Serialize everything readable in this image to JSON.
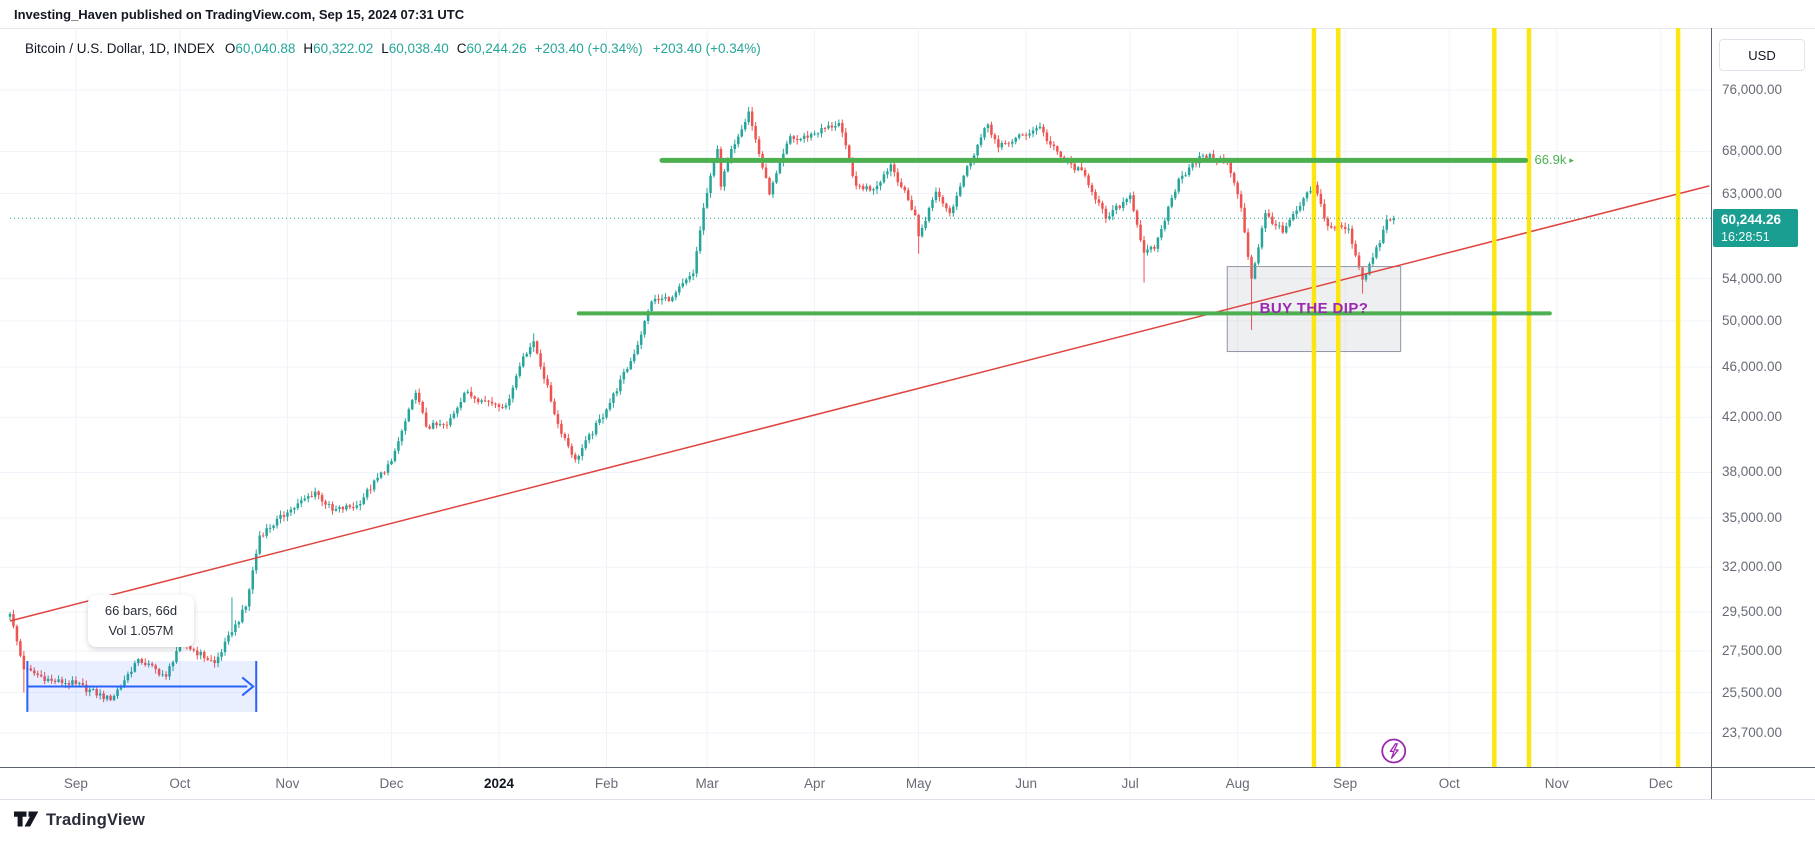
{
  "publish_bar": {
    "text": "Investing_Haven published on TradingView.com, Sep 15, 2024 07:31 UTC"
  },
  "header": {
    "title_line": "Bitcoin / U.S. Dollar, 1D, INDEX",
    "ohlc": [
      {
        "label": "O",
        "value": "60,040.88"
      },
      {
        "label": "H",
        "value": "60,322.02"
      },
      {
        "label": "L",
        "value": "60,038.40"
      },
      {
        "label": "C",
        "value": "60,244.26"
      }
    ],
    "change": "+203.40 (+0.34%)",
    "change_2": "+203.40 (+0.34%)"
  },
  "price_scale": {
    "currency": "USD",
    "last_price": "60,244.26",
    "countdown": "16:28:51",
    "ticks": [
      {
        "label": "76,000.00",
        "value": 76000
      },
      {
        "label": "68,000.00",
        "value": 68000
      },
      {
        "label": "63,000.00",
        "value": 63000
      },
      {
        "label": "54,000.00",
        "value": 54000
      },
      {
        "label": "50,000.00",
        "value": 50000
      },
      {
        "label": "46,000.00",
        "value": 46000
      },
      {
        "label": "42,000.00",
        "value": 42000
      },
      {
        "label": "38,000.00",
        "value": 38000
      },
      {
        "label": "35,000.00",
        "value": 35000
      },
      {
        "label": "32,000.00",
        "value": 32000
      },
      {
        "label": "29,500.00",
        "value": 29500
      },
      {
        "label": "27,500.00",
        "value": 27500
      },
      {
        "label": "25,500.00",
        "value": 25500
      },
      {
        "label": "23,700.00",
        "value": 23700
      }
    ]
  },
  "time_scale": {
    "months": [
      {
        "label": "Sep",
        "date": "2023-09-01"
      },
      {
        "label": "Oct",
        "date": "2023-10-01"
      },
      {
        "label": "Nov",
        "date": "2023-11-01"
      },
      {
        "label": "Dec",
        "date": "2023-12-01"
      },
      {
        "label": "2024",
        "date": "2024-01-01",
        "bold": true
      },
      {
        "label": "Feb",
        "date": "2024-02-01"
      },
      {
        "label": "Mar",
        "date": "2024-03-01"
      },
      {
        "label": "Apr",
        "date": "2024-04-01"
      },
      {
        "label": "May",
        "date": "2024-05-01"
      },
      {
        "label": "Jun",
        "date": "2024-06-01"
      },
      {
        "label": "Jul",
        "date": "2024-07-01"
      },
      {
        "label": "Aug",
        "date": "2024-08-01"
      },
      {
        "label": "Sep",
        "date": "2024-09-01"
      },
      {
        "label": "Oct",
        "date": "2024-10-01"
      },
      {
        "label": "Nov",
        "date": "2024-11-01"
      },
      {
        "label": "Dec",
        "date": "2024-12-01"
      }
    ]
  },
  "annotations": {
    "resistance_label": "66.9k",
    "resistance_marker": "▸",
    "dip_text": "BUY THE DIP?",
    "measure_tooltip": {
      "line1": "66 bars, 66d",
      "line2": "Vol 1.057M"
    }
  },
  "footer": {
    "brand": "TradingView"
  },
  "colors": {
    "up": "#26a69a",
    "down": "#ef5350",
    "green_line": "#4caf50",
    "trendline_red": "#e0433e",
    "yellow_line": "#fbe513",
    "purple": "#9c27b0",
    "blue_measure": "#2962ff",
    "blue_measure_fill": "rgba(41,98,255,0.10)",
    "badge_bg": "#1b9e92",
    "grid": "#f0f3fa",
    "border_light": "#e0e3eb",
    "separator": "#5d6270",
    "grey_box_fill": "rgba(134,139,156,0.14)",
    "grey_box_stroke": "#9096a5"
  },
  "chart_data": {
    "type": "candlestick",
    "symbol": "Bitcoin / U.S. Dollar (INDEX)",
    "interval": "1D",
    "y_axis": {
      "scale": "log",
      "tick_values": [
        76000,
        68000,
        63000,
        54000,
        50000,
        46000,
        42000,
        38000,
        35000,
        32000,
        29500,
        27500,
        25500,
        23700
      ],
      "range_top": 76000,
      "range_bottom": 22600
    },
    "first_bar_date": "2023-08-13",
    "last_bar_date": "2024-09-15",
    "last_close": 60244.26,
    "price_path_keypoints": [
      [
        "2023-08-13",
        29400
      ],
      [
        "2023-08-17",
        26600
      ],
      [
        "2023-08-25",
        26050
      ],
      [
        "2023-09-01",
        25900
      ],
      [
        "2023-09-11",
        25150
      ],
      [
        "2023-09-19",
        27100
      ],
      [
        "2023-09-27",
        26250
      ],
      [
        "2023-10-01",
        27950
      ],
      [
        "2023-10-11",
        26900
      ],
      [
        "2023-10-16",
        28450
      ],
      [
        "2023-10-20",
        29800
      ],
      [
        "2023-10-24",
        33900
      ],
      [
        "2023-11-01",
        35350
      ],
      [
        "2023-11-09",
        36700
      ],
      [
        "2023-11-14",
        35450
      ],
      [
        "2023-11-21",
        35800
      ],
      [
        "2023-12-01",
        38800
      ],
      [
        "2023-12-08",
        43900
      ],
      [
        "2023-12-11",
        41300
      ],
      [
        "2023-12-17",
        41400
      ],
      [
        "2023-12-22",
        43900
      ],
      [
        "2023-12-27",
        43300
      ],
      [
        "2024-01-03",
        42900
      ],
      [
        "2024-01-08",
        46900
      ],
      [
        "2024-01-11",
        48200
      ],
      [
        "2024-01-18",
        41500
      ],
      [
        "2024-01-23",
        38900
      ],
      [
        "2024-02-01",
        42600
      ],
      [
        "2024-02-09",
        47100
      ],
      [
        "2024-02-14",
        51800
      ],
      [
        "2024-02-20",
        52200
      ],
      [
        "2024-02-26",
        54500
      ],
      [
        "2024-02-29",
        61400
      ],
      [
        "2024-03-04",
        68300
      ],
      [
        "2024-03-05",
        63800
      ],
      [
        "2024-03-08",
        68300
      ],
      [
        "2024-03-13",
        73100
      ],
      [
        "2024-03-14",
        71200
      ],
      [
        "2024-03-19",
        62900
      ],
      [
        "2024-03-25",
        69900
      ],
      [
        "2024-03-27",
        69400
      ],
      [
        "2024-04-08",
        71600
      ],
      [
        "2024-04-13",
        63900
      ],
      [
        "2024-04-18",
        63500
      ],
      [
        "2024-04-23",
        66400
      ],
      [
        "2024-04-30",
        60600
      ],
      [
        "2024-05-01",
        58300
      ],
      [
        "2024-05-06",
        63200
      ],
      [
        "2024-05-10",
        60800
      ],
      [
        "2024-05-15",
        66200
      ],
      [
        "2024-05-21",
        71400
      ],
      [
        "2024-05-24",
        68500
      ],
      [
        "2024-06-05",
        71100
      ],
      [
        "2024-06-07",
        69300
      ],
      [
        "2024-06-11",
        67300
      ],
      [
        "2024-06-18",
        65100
      ],
      [
        "2024-06-24",
        60200
      ],
      [
        "2024-07-01",
        62800
      ],
      [
        "2024-07-05",
        56600
      ],
      [
        "2024-07-08",
        57000
      ],
      [
        "2024-07-15",
        64700
      ],
      [
        "2024-07-22",
        67500
      ],
      [
        "2024-07-29",
        66800
      ],
      [
        "2024-08-02",
        61400
      ],
      [
        "2024-08-05",
        54000
      ],
      [
        "2024-08-09",
        60800
      ],
      [
        "2024-08-14",
        58700
      ],
      [
        "2024-08-23",
        64000
      ],
      [
        "2024-08-27",
        59400
      ],
      [
        "2024-09-02",
        59100
      ],
      [
        "2024-09-06",
        53900
      ],
      [
        "2024-09-11",
        57600
      ],
      [
        "2024-09-13",
        60100
      ],
      [
        "2024-09-14",
        60040.88
      ],
      [
        "2024-09-15",
        60244.26
      ]
    ],
    "extra_wicks": [
      {
        "date": "2023-08-17",
        "low": 25500
      },
      {
        "date": "2023-10-16",
        "high": 30300
      },
      {
        "date": "2024-01-11",
        "high": 48900
      },
      {
        "date": "2024-03-14",
        "high": 73700
      },
      {
        "date": "2024-05-01",
        "low": 56500
      },
      {
        "date": "2024-07-05",
        "low": 53600
      },
      {
        "date": "2024-08-05",
        "low": 49200
      },
      {
        "date": "2024-09-06",
        "low": 52550
      }
    ],
    "drawings": {
      "resistance_line": {
        "price": 66900,
        "from": "2024-02-17",
        "to": "2024-10-23",
        "width": 5
      },
      "support_line": {
        "price": 50700,
        "from": "2024-01-24",
        "to": "2024-10-30",
        "width": 4
      },
      "trendline": {
        "from": {
          "date": "2023-08-13",
          "price": 29030
        },
        "to": {
          "date": "2024-12-15",
          "price": 63880
        }
      },
      "current_price_line": {
        "price": 60244.26,
        "style": "dotted"
      },
      "vertical_lines": [
        "2024-08-23",
        "2024-08-30",
        "2024-10-14",
        "2024-10-24",
        "2024-12-06"
      ],
      "dip_zone_box": {
        "from": "2024-07-29",
        "to": "2024-09-17",
        "price_top": 55190,
        "price_bottom": 47310
      },
      "measure_range": {
        "from": "2023-08-18",
        "to": "2023-10-23",
        "price_top": 27000,
        "price_bottom": 24620,
        "bars": 66,
        "days": 66,
        "volume": "1.057M"
      },
      "idea_marker": {
        "date": "2024-09-15",
        "icon": "lightning"
      }
    }
  }
}
